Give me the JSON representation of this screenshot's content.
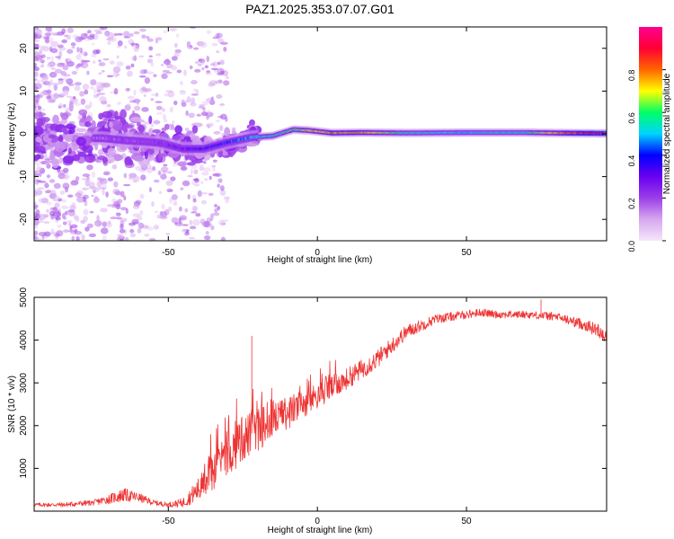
{
  "title": "PAZ1.2025.353.07.07.G01",
  "chart_data": [
    {
      "type": "heatmap",
      "title": "PAZ1.2025.353.07.07.G01",
      "xlabel": "Height of straight line (km)",
      "ylabel": "Frequency (Hz)",
      "xlim": [
        -95,
        97
      ],
      "ylim": [
        -25,
        25
      ],
      "xticks": [
        -50,
        0,
        50
      ],
      "yticks": [
        -20,
        -10,
        0,
        10,
        20
      ],
      "colorbar": {
        "label": "Normalized spectral amplitude",
        "range": [
          0,
          1
        ],
        "ticks": [
          "0.0",
          "0.2",
          "0.4",
          "0.6",
          "0.8"
        ],
        "colors": [
          "#f5e6fa",
          "#d7a8ef",
          "#9b3ee8",
          "#6a00f0",
          "#0000ff",
          "#00d4ff",
          "#00ff66",
          "#ffff00",
          "#ff6600",
          "#ff0033",
          "#ff0090"
        ]
      },
      "ridge": [
        {
          "x": -72,
          "f": -1.0,
          "amp": 0.15
        },
        {
          "x": -65,
          "f": -1.5,
          "amp": 0.2
        },
        {
          "x": -58,
          "f": -1.8,
          "amp": 0.2
        },
        {
          "x": -52,
          "f": -2.2,
          "amp": 0.22
        },
        {
          "x": -45,
          "f": -3.5,
          "amp": 0.3
        },
        {
          "x": -38,
          "f": -3.5,
          "amp": 0.35
        },
        {
          "x": -30,
          "f": -2.0,
          "amp": 0.4
        },
        {
          "x": -22,
          "f": -0.8,
          "amp": 0.5
        },
        {
          "x": -15,
          "f": -0.5,
          "amp": 0.55
        },
        {
          "x": -8,
          "f": 1.0,
          "amp": 0.6
        },
        {
          "x": -3,
          "f": 0.8,
          "amp": 0.7
        },
        {
          "x": 5,
          "f": 0.2,
          "amp": 0.75
        },
        {
          "x": 15,
          "f": 0.3,
          "amp": 0.75
        },
        {
          "x": 30,
          "f": 0.2,
          "amp": 0.55
        },
        {
          "x": 50,
          "f": 0.3,
          "amp": 0.5
        },
        {
          "x": 70,
          "f": 0.3,
          "amp": 0.55
        },
        {
          "x": 80,
          "f": 0.2,
          "amp": 0.75
        },
        {
          "x": 97,
          "f": 0.1,
          "amp": 0.95
        }
      ]
    },
    {
      "type": "line",
      "xlabel": "Height of straight line (km)",
      "ylabel": "SNR (10 * v/v)",
      "xlim": [
        -95,
        97
      ],
      "ylim": [
        0,
        5000
      ],
      "xticks": [
        -50,
        0,
        50
      ],
      "yticks": [
        1000,
        2000,
        3000,
        4000,
        5000
      ],
      "series": [
        {
          "name": "SNR",
          "color": "#ee3333",
          "x": [
            -95,
            -85,
            -75,
            -70,
            -65,
            -60,
            -55,
            -50,
            -45,
            -40,
            -35,
            -30,
            -25,
            -20,
            -15,
            -10,
            -5,
            0,
            5,
            10,
            20,
            30,
            40,
            50,
            55,
            60,
            70,
            80,
            85,
            90,
            95,
            97
          ],
          "y": [
            150,
            150,
            200,
            280,
            380,
            320,
            200,
            150,
            200,
            500,
            900,
            1300,
            1700,
            1900,
            2100,
            2300,
            2500,
            2700,
            2900,
            3100,
            3550,
            4200,
            4500,
            4600,
            4650,
            4600,
            4600,
            4550,
            4450,
            4350,
            4200,
            4050
          ],
          "spread": [
            80,
            100,
            120,
            200,
            300,
            200,
            120,
            100,
            200,
            500,
            800,
            900,
            1000,
            900,
            800,
            700,
            600,
            550,
            500,
            450,
            400,
            300,
            200,
            180,
            170,
            160,
            160,
            180,
            200,
            250,
            300,
            300
          ]
        }
      ],
      "annotations": [
        {
          "x": -22,
          "y": 4100
        },
        {
          "x": 75,
          "y": 4950
        }
      ]
    }
  ]
}
